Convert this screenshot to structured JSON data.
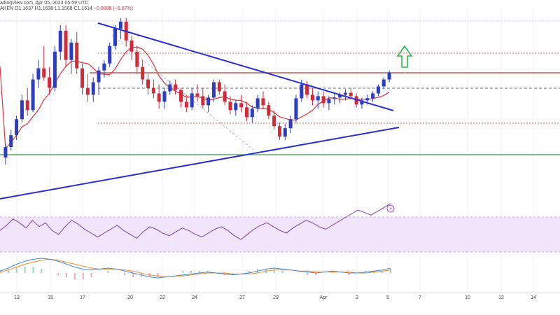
{
  "header": {
    "line1": "adingView.com, Apr 05, 2023 05:59 UTC",
    "line2_prefix": "AKEN  O1.1637  H1.1638  L1.1568  C1.1614",
    "line2_change": "−0.0008 (−0.07%)"
  },
  "colors": {
    "up": "#2e3dbf",
    "down": "#d12a3a",
    "ma": "#e0333c",
    "trendline": "#2a2fcf",
    "support_green": "#3c9a4a",
    "resistance_dotted": "#c0392b",
    "dashed_black": "#444444",
    "rsi_line": "#7b3fb3",
    "rsi_band": "#f1e4fb",
    "macd_fast": "#3f87d9",
    "macd_slow": "#f08a2e",
    "hist_pos": "#9ad4c8",
    "hist_neg": "#f4a6b3",
    "arrow": "#2db74a"
  },
  "icons": {
    "bolt": "lightning-icon",
    "arrow": "arrow-up-icon"
  },
  "chart_data": {
    "type": "candlestick",
    "x_ticks": [
      "13",
      "15",
      "17",
      "20",
      "22",
      "24",
      "27",
      "29",
      "Apr",
      "3",
      "5",
      "7",
      "10",
      "12",
      "14"
    ],
    "ohlc_close_path_note": "",
    "candles": [
      [
        1.16,
        1.162,
        1.159,
        1.1615
      ],
      [
        1.1615,
        1.164,
        1.161,
        1.1632
      ],
      [
        1.1632,
        1.166,
        1.1625,
        1.1655
      ],
      [
        1.1655,
        1.169,
        1.165,
        1.1682
      ],
      [
        1.1682,
        1.17,
        1.166,
        1.1668
      ],
      [
        1.1668,
        1.172,
        1.1665,
        1.1712
      ],
      [
        1.1712,
        1.174,
        1.17,
        1.1728
      ],
      [
        1.1728,
        1.176,
        1.171,
        1.1715
      ],
      [
        1.1715,
        1.173,
        1.169,
        1.17
      ],
      [
        1.17,
        1.176,
        1.1695,
        1.1752
      ],
      [
        1.1752,
        1.179,
        1.174,
        1.1782
      ],
      [
        1.1782,
        1.179,
        1.173,
        1.174
      ],
      [
        1.174,
        1.177,
        1.172,
        1.1765
      ],
      [
        1.1765,
        1.178,
        1.172,
        1.1728
      ],
      [
        1.1728,
        1.1735,
        1.169,
        1.17
      ],
      [
        1.17,
        1.172,
        1.168,
        1.169
      ],
      [
        1.169,
        1.1715,
        1.168,
        1.1708
      ],
      [
        1.1708,
        1.173,
        1.169,
        1.1725
      ],
      [
        1.1725,
        1.174,
        1.1715,
        1.1735
      ],
      [
        1.1735,
        1.1765,
        1.173,
        1.176
      ],
      [
        1.176,
        1.179,
        1.1755,
        1.1785
      ],
      [
        1.1785,
        1.18,
        1.177,
        1.1795
      ],
      [
        1.1795,
        1.18,
        1.176,
        1.1768
      ],
      [
        1.1768,
        1.1775,
        1.174,
        1.1752
      ],
      [
        1.1752,
        1.176,
        1.172,
        1.173
      ],
      [
        1.173,
        1.174,
        1.1705,
        1.1712
      ],
      [
        1.1712,
        1.172,
        1.169,
        1.17
      ],
      [
        1.17,
        1.1712,
        1.1685,
        1.1692
      ],
      [
        1.1692,
        1.1705,
        1.167,
        1.168
      ],
      [
        1.168,
        1.17,
        1.167,
        1.1695
      ],
      [
        1.1695,
        1.171,
        1.169,
        1.1705
      ],
      [
        1.1705,
        1.1712,
        1.169,
        1.1697
      ],
      [
        1.1697,
        1.17,
        1.1672,
        1.168
      ],
      [
        1.168,
        1.169,
        1.1665,
        1.1672
      ],
      [
        1.1672,
        1.17,
        1.1668,
        1.1692
      ],
      [
        1.1692,
        1.1705,
        1.168,
        1.1688
      ],
      [
        1.1688,
        1.17,
        1.167,
        1.1675
      ],
      [
        1.1675,
        1.169,
        1.1665,
        1.1686
      ],
      [
        1.1686,
        1.1712,
        1.168,
        1.1708
      ],
      [
        1.1708,
        1.1712,
        1.169,
        1.1695
      ],
      [
        1.1695,
        1.1705,
        1.1675,
        1.168
      ],
      [
        1.168,
        1.1688,
        1.1662,
        1.1668
      ],
      [
        1.1668,
        1.1682,
        1.166,
        1.1678
      ],
      [
        1.1678,
        1.169,
        1.1665,
        1.1672
      ],
      [
        1.1672,
        1.168,
        1.1652,
        1.1658
      ],
      [
        1.1658,
        1.1675,
        1.165,
        1.167
      ],
      [
        1.167,
        1.169,
        1.1665,
        1.1685
      ],
      [
        1.1685,
        1.1695,
        1.167,
        1.1675
      ],
      [
        1.1675,
        1.168,
        1.1655,
        1.166
      ],
      [
        1.166,
        1.1668,
        1.164,
        1.1645
      ],
      [
        1.1645,
        1.165,
        1.1625,
        1.163
      ],
      [
        1.163,
        1.1648,
        1.1625,
        1.1642
      ],
      [
        1.1642,
        1.166,
        1.1635,
        1.1655
      ],
      [
        1.1655,
        1.169,
        1.165,
        1.1685
      ],
      [
        1.1685,
        1.1712,
        1.168,
        1.1705
      ],
      [
        1.1705,
        1.171,
        1.1685,
        1.169
      ],
      [
        1.169,
        1.17,
        1.1675,
        1.1682
      ],
      [
        1.1682,
        1.1695,
        1.167,
        1.1688
      ],
      [
        1.1688,
        1.1695,
        1.1672,
        1.1678
      ],
      [
        1.1678,
        1.1688,
        1.1668,
        1.1684
      ],
      [
        1.1684,
        1.1692,
        1.1676,
        1.1686
      ],
      [
        1.1686,
        1.1694,
        1.1678,
        1.169
      ],
      [
        1.169,
        1.1698,
        1.1682,
        1.1693
      ],
      [
        1.1693,
        1.17,
        1.1684,
        1.1688
      ],
      [
        1.1688,
        1.1692,
        1.1672,
        1.1676
      ],
      [
        1.1676,
        1.1686,
        1.167,
        1.1682
      ],
      [
        1.1682,
        1.169,
        1.1676,
        1.1685
      ],
      [
        1.1685,
        1.1695,
        1.168,
        1.1692
      ],
      [
        1.1692,
        1.1705,
        1.1688,
        1.1702
      ],
      [
        1.1702,
        1.1715,
        1.1698,
        1.1712
      ],
      [
        1.1712,
        1.1725,
        1.1708,
        1.1722
      ]
    ],
    "ylim": [
      1.16,
      1.181
    ],
    "rsi": [
      52,
      56,
      61,
      58,
      54,
      60,
      55,
      58,
      52,
      49,
      55,
      60,
      57,
      53,
      50,
      47,
      50,
      53,
      56,
      52,
      49,
      46,
      51,
      55,
      53,
      50,
      48,
      51,
      54,
      52,
      49,
      47,
      50,
      53,
      55,
      52,
      48,
      45,
      49,
      53,
      56,
      58,
      55,
      52,
      50,
      54,
      57,
      60,
      58,
      55,
      53,
      56,
      59,
      62,
      65,
      68,
      66,
      64,
      67,
      70,
      73
    ],
    "rsi_ylim": [
      20,
      80
    ],
    "macd_fast": [
      0.2,
      0.5,
      0.9,
      1.2,
      1.4,
      1.5,
      1.4,
      1.2,
      0.9,
      0.6,
      0.4,
      0.3,
      0.4,
      0.5,
      0.4,
      0.2,
      0.0,
      -0.2,
      -0.4,
      -0.5,
      -0.4,
      -0.3,
      -0.2,
      -0.1,
      0.0,
      0.1,
      0.0,
      -0.1,
      -0.2,
      -0.1,
      0.0,
      0.2,
      0.4,
      0.5,
      0.4,
      0.3,
      0.2,
      0.1,
      0.0,
      0.1,
      0.2,
      0.1,
      0.0,
      0.0,
      0.1,
      0.2,
      0.3,
      0.5
    ],
    "macd_slow": [
      0.1,
      0.3,
      0.6,
      0.9,
      1.1,
      1.3,
      1.4,
      1.3,
      1.1,
      0.9,
      0.7,
      0.5,
      0.4,
      0.4,
      0.4,
      0.3,
      0.2,
      0.0,
      -0.2,
      -0.3,
      -0.4,
      -0.3,
      -0.3,
      -0.2,
      -0.1,
      0.0,
      0.0,
      0.0,
      -0.1,
      -0.1,
      -0.1,
      0.0,
      0.2,
      0.3,
      0.3,
      0.3,
      0.2,
      0.2,
      0.1,
      0.1,
      0.1,
      0.1,
      0.1,
      0.0,
      0.0,
      0.1,
      0.2,
      0.3
    ],
    "macd_ylim": [
      -1.2,
      2.0
    ]
  }
}
